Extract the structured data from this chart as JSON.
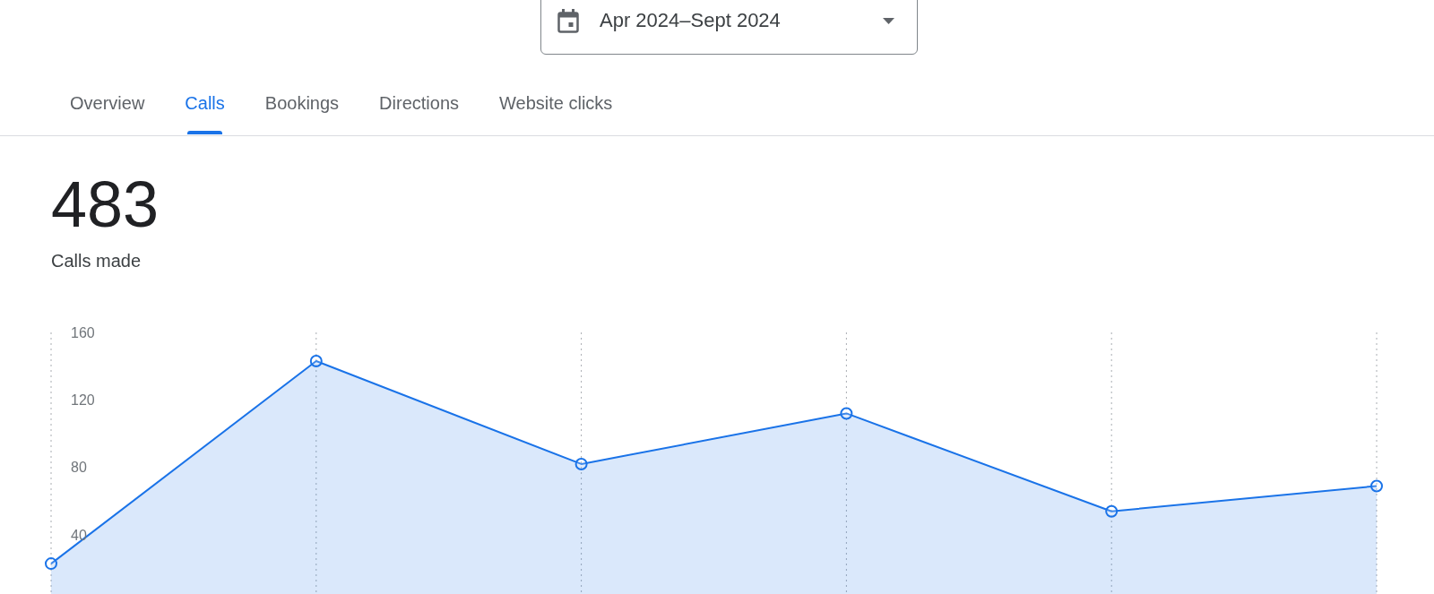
{
  "chart_data": {
    "type": "area",
    "title": "483",
    "subtitle": "Calls made",
    "annotations": [
      "Apr 2024–Sept 2024",
      "Overview",
      "Calls",
      "Bookings",
      "Directions",
      "Website clicks"
    ],
    "categories": [
      null,
      null,
      null,
      null,
      null,
      null
    ],
    "series": [
      {
        "color": "#1a73e8",
        "values": [
          23,
          143,
          82,
          112,
          54,
          69
        ]
      }
    ],
    "ylim": [
      5,
      160
    ],
    "yticks": [
      40,
      80,
      120,
      160
    ],
    "grid": "x",
    "marker": "circle",
    "tick_labels": "y"
  }
}
